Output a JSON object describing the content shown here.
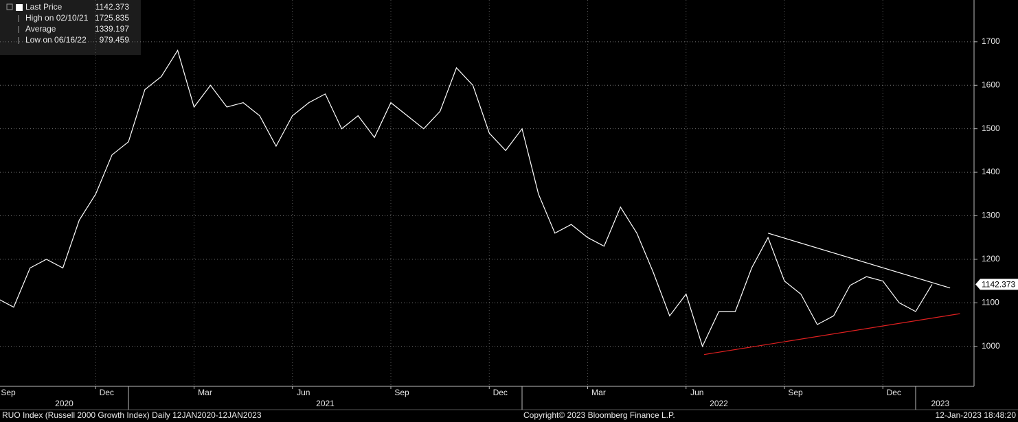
{
  "chart_data": {
    "type": "line",
    "title": "RUO Index (Russell 2000 Growth Index)  Daily 12JAN2020-12JAN2023",
    "copyright": "Copyright© 2023 Bloomberg Finance L.P.",
    "timestamp": "12-Jan-2023 18:48:20",
    "legend_rows": [
      {
        "label": "Last Price",
        "value": "1142.373"
      },
      {
        "label": "High on 02/10/21",
        "value": "1725.835"
      },
      {
        "label": "Average",
        "value": "1339.197"
      },
      {
        "label": "Low on 06/16/22",
        "value": "979.459"
      }
    ],
    "last_price_tag": 1142.373,
    "categories": [
      "Sep",
      null,
      null,
      null,
      null,
      null,
      "Dec",
      null,
      null,
      null,
      null,
      null,
      "Mar",
      null,
      null,
      null,
      null,
      null,
      "Jun",
      null,
      null,
      null,
      null,
      null,
      "Sep",
      null,
      null,
      null,
      null,
      null,
      "Dec",
      null,
      null,
      null,
      null,
      null,
      "Mar",
      null,
      null,
      null,
      null,
      null,
      "Jun",
      null,
      null,
      null,
      null,
      null,
      "Sep",
      null,
      null,
      null,
      null,
      null,
      "Dec",
      null,
      null,
      null
    ],
    "year_groups": [
      {
        "label": "2020",
        "start": 0,
        "end": 8
      },
      {
        "label": "2021",
        "start": 8,
        "end": 32
      },
      {
        "label": "2022",
        "start": 32,
        "end": 56
      },
      {
        "label": "2023",
        "start": 56,
        "end": 59
      }
    ],
    "series": [
      {
        "name": "Last Price",
        "color": "#ffffff",
        "values": [
          1110,
          1090,
          1180,
          1200,
          1180,
          1290,
          1350,
          1440,
          1470,
          1590,
          1620,
          1680,
          1550,
          1600,
          1550,
          1560,
          1530,
          1460,
          1530,
          1560,
          1580,
          1500,
          1530,
          1480,
          1560,
          1530,
          1500,
          1540,
          1640,
          1600,
          1490,
          1450,
          1500,
          1350,
          1260,
          1280,
          1250,
          1230,
          1320,
          1260,
          1170,
          1070,
          1120,
          1000,
          1080,
          1080,
          1180,
          1250,
          1150,
          1120,
          1050,
          1070,
          1140,
          1160,
          1150,
          1100,
          1080,
          1142.373
        ]
      }
    ],
    "trendlines": [
      {
        "color": "#ffffff",
        "x": [
          47.0,
          58.1
        ],
        "y": [
          1260,
          1134
        ]
      },
      {
        "color": "#e02020",
        "x": [
          43.1,
          58.7
        ],
        "y": [
          981,
          1075
        ]
      }
    ],
    "ylim": [
      908,
      1796
    ],
    "yticks": [
      1000,
      1100,
      1200,
      1300,
      1400,
      1500,
      1600,
      1700
    ],
    "grid": true
  }
}
